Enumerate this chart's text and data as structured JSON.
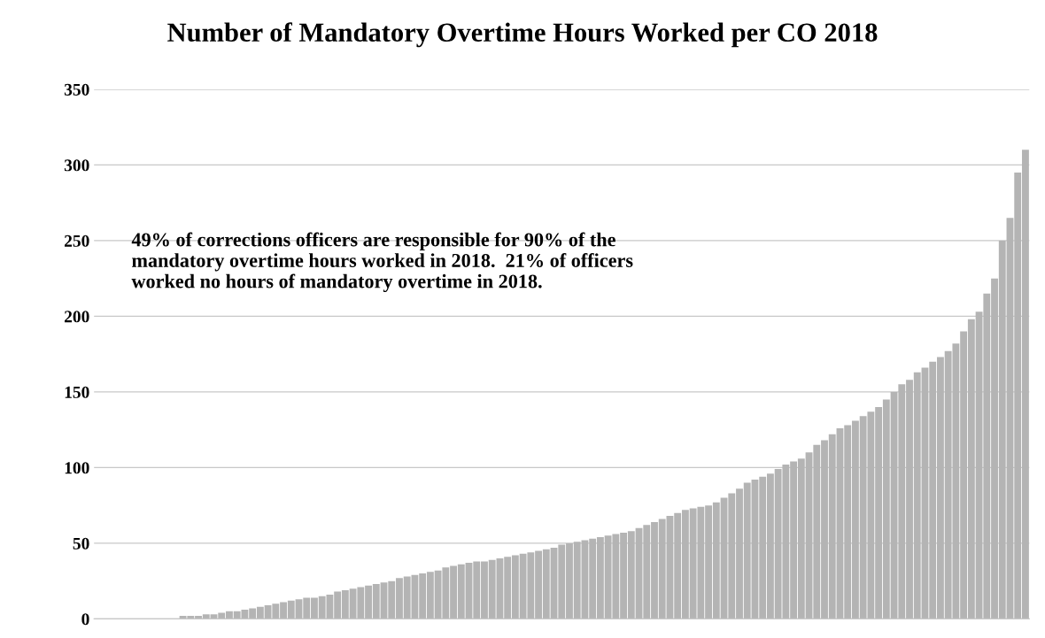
{
  "chart_data": {
    "type": "bar",
    "title": "Number of Mandatory Overtime Hours Worked per CO 2018",
    "categories": [
      null,
      null,
      null,
      null,
      null,
      null,
      null,
      null,
      null,
      null,
      null,
      null,
      null,
      null,
      null,
      null,
      null,
      null,
      null,
      null,
      null,
      null,
      null,
      null,
      null,
      null,
      null,
      null,
      null,
      null,
      null,
      null,
      null,
      null,
      null,
      null,
      null,
      null,
      null,
      null,
      null,
      null,
      null,
      null,
      null,
      null,
      null,
      null,
      null,
      null,
      null,
      null,
      null,
      null,
      null,
      null,
      null,
      null,
      null,
      null,
      null,
      null,
      null,
      null,
      null,
      null,
      null,
      null,
      null,
      null,
      null,
      null,
      null,
      null,
      null,
      null,
      null,
      null,
      null,
      null,
      null,
      null,
      null,
      null,
      null,
      null,
      null,
      null,
      null,
      null,
      null,
      null,
      null,
      null,
      null,
      null,
      null,
      null,
      null,
      null,
      null,
      null,
      null,
      null,
      null,
      null,
      null,
      null,
      null,
      null,
      null,
      null,
      null,
      null,
      null,
      null,
      null,
      null,
      null,
      null,
      null
    ],
    "values": [
      0,
      0,
      0,
      0,
      0,
      0,
      0,
      0,
      0,
      0,
      0,
      2,
      2,
      2,
      3,
      3,
      4,
      5,
      5,
      6,
      7,
      8,
      9,
      10,
      11,
      12,
      13,
      14,
      14,
      15,
      16,
      18,
      19,
      20,
      21,
      22,
      23,
      24,
      25,
      27,
      28,
      29,
      30,
      31,
      32,
      34,
      35,
      36,
      37,
      38,
      38,
      39,
      40,
      41,
      42,
      43,
      44,
      45,
      46,
      47,
      49,
      50,
      51,
      52,
      53,
      54,
      55,
      56,
      57,
      58,
      60,
      62,
      64,
      66,
      68,
      70,
      72,
      73,
      74,
      75,
      77,
      80,
      83,
      86,
      90,
      92,
      94,
      96,
      99,
      102,
      104,
      106,
      110,
      115,
      118,
      122,
      126,
      128,
      131,
      134,
      137,
      140,
      145,
      150,
      155,
      158,
      163,
      166,
      170,
      173,
      177,
      182,
      190,
      198,
      203,
      215,
      225,
      250,
      265,
      295,
      310
    ],
    "color": "#b4b4b4",
    "ylim": [
      0,
      350
    ],
    "yticks": [
      0,
      50,
      100,
      150,
      200,
      250,
      300,
      350
    ],
    "grid": "y",
    "annotations": [
      "49% of corrections officers are responsible for 90% of the\nmandatory overtime hours worked in 2018.  21% of officers\nworked no hours of mandatory overtime in 2018."
    ]
  }
}
